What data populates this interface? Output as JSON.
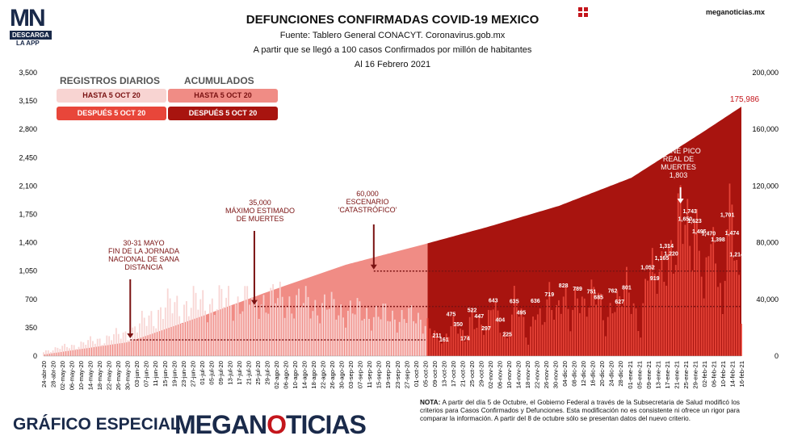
{
  "header": {
    "logo_mn": "MN",
    "logo_tag": "DESCARGA",
    "logo_app": "LA APP",
    "title": "DEFUNCIONES CONFIRMADAS COVID-19 MEXICO",
    "subtitle1": "Fuente: Tablero General CONACYT. Coronavirus.gob.mx",
    "subtitle2": "A partir que se llegó a 100 casos Confirmados por millón de habitantes",
    "subtitle3": "Al 16 Febrero 2021",
    "site": "meganoticias.mx"
  },
  "legend": {
    "daily_title": "REGISTROS DIARIOS",
    "acum_title": "ACUMULADOS",
    "until": "HASTA 5 OCT 20",
    "after": "DESPUÉS 5 OCT 20"
  },
  "colors": {
    "daily_before": "#f8d4d2",
    "daily_after": "#e8463a",
    "acum_before": "#f08c85",
    "acum_after": "#a8140f",
    "brand_red": "#c4161c",
    "brand_navy": "#1a2a4a"
  },
  "annotations": {
    "a1": "30-31 MAYO\nFIN DE LA JORNADA\nNACIONAL DE SANA\nDISTANCIA",
    "a2": "35,000\nMÁXIMO ESTIMADO\nDE MUERTES",
    "a3": "60,000\nESCENARIO\n‘CATASTRÓFICO’",
    "a4": "21 ENE PICO\nREAL DE\nMUERTES\n1,803",
    "final_value": "175,986"
  },
  "footer": {
    "special": "GRÁFICO ESPECIAL",
    "brand_a": "MEGAN",
    "brand_o": "O",
    "brand_b": "TICIAS",
    "nota_label": "NOTA:",
    "nota": "A partir del día 5 de Octubre, el Gobierno Federal a través de la Subsecretaria de Salud modificó los criterios para Casos Confirmados y Defunciones. Esta modificación no es consistente ni ofrece un rigor para comparar la información. A partir del 8 de octubre sólo se presentan datos del nuevo criterio."
  },
  "chart_data": {
    "type": "bar",
    "left_axis": {
      "ticks": [
        "0",
        "350",
        "700",
        "1,050",
        "1,400",
        "1,750",
        "2,100",
        "2,450",
        "2,800",
        "3,150",
        "3,500"
      ],
      "range": [
        0,
        3500
      ]
    },
    "right_axis": {
      "ticks": [
        "0",
        "40,000",
        "80,000",
        "120,000",
        "160,000",
        "200,000"
      ],
      "range": [
        0,
        200000
      ]
    },
    "x_start": "2020-04-24",
    "x_end": "2021-02-16",
    "split_date": "2020-10-05",
    "x_tick_labels": [
      "24-abr-20",
      "28-abr-20",
      "02-may-20",
      "06-may-20",
      "10-may-20",
      "14-may-20",
      "18-may-20",
      "22-may-20",
      "26-may-20",
      "30-may-20",
      "03-jun-20",
      "07-jun-20",
      "11-jun-20",
      "15-jun-20",
      "19-jun-20",
      "23-jun-20",
      "27-jun-20",
      "01-jul-20",
      "05-jul-20",
      "09-jul-20",
      "13-jul-20",
      "17-jul-20",
      "21-jul-20",
      "25-jul-20",
      "29-jul-20",
      "02-ago-20",
      "06-ago-20",
      "10-ago-20",
      "14-ago-20",
      "18-ago-20",
      "22-ago-20",
      "26-ago-20",
      "30-ago-20",
      "03-sep-20",
      "07-sep-20",
      "11-sep-20",
      "15-sep-20",
      "19-sep-20",
      "23-sep-20",
      "27-sep-20",
      "01-oct-20",
      "05-oct-20",
      "09-oct-20",
      "13-oct-20",
      "17-oct-20",
      "21-oct-20",
      "25-oct-20",
      "29-oct-20",
      "02-nov-20",
      "06-nov-20",
      "10-nov-20",
      "14-nov-20",
      "18-nov-20",
      "22-nov-20",
      "26-nov-20",
      "30-nov-20",
      "04-dic-20",
      "08-dic-20",
      "12-dic-20",
      "16-dic-20",
      "20-dic-20",
      "24-dic-20",
      "28-dic-20",
      "01-ene-21",
      "05-ene-21",
      "09-ene-21",
      "13-ene-21",
      "17-ene-21",
      "21-ene-21",
      "25-ene-21",
      "29-ene-21",
      "02-feb-21",
      "06-feb-21",
      "10-feb-21",
      "14-feb-21",
      "16-feb-21"
    ],
    "reference_lines": [
      {
        "label": "35,000",
        "value": 35000
      },
      {
        "label": "60,000",
        "value": 60000
      },
      {
        "label": "30-31 MAYO",
        "daily_value": 200
      }
    ],
    "cumulative_points": [
      [
        "2020-04-24",
        1069
      ],
      [
        "2020-05-30",
        9779
      ],
      [
        "2020-06-30",
        27769
      ],
      [
        "2020-07-31",
        46688
      ],
      [
        "2020-08-31",
        64414
      ],
      [
        "2020-10-04",
        79088
      ],
      [
        "2020-10-31",
        91289
      ],
      [
        "2020-11-30",
        105940
      ],
      [
        "2020-12-31",
        125807
      ],
      [
        "2021-01-31",
        158536
      ],
      [
        "2021-02-16",
        175986
      ]
    ],
    "daily_points": [
      [
        "2020-04-24",
        60
      ],
      [
        "2020-05-10",
        150
      ],
      [
        "2020-05-30",
        280
      ],
      [
        "2020-06-15",
        600
      ],
      [
        "2020-06-30",
        650
      ],
      [
        "2020-07-15",
        680
      ],
      [
        "2020-07-31",
        700
      ],
      [
        "2020-08-15",
        640
      ],
      [
        "2020-08-31",
        560
      ],
      [
        "2020-09-15",
        500
      ],
      [
        "2020-10-04",
        450
      ],
      [
        "2020-10-09",
        211
      ],
      [
        "2020-10-12",
        161
      ],
      [
        "2020-10-15",
        475
      ],
      [
        "2020-10-18",
        350
      ],
      [
        "2020-10-21",
        174
      ],
      [
        "2020-10-24",
        522
      ],
      [
        "2020-10-27",
        447
      ],
      [
        "2020-10-30",
        297
      ],
      [
        "2020-11-02",
        643
      ],
      [
        "2020-11-05",
        404
      ],
      [
        "2020-11-08",
        225
      ],
      [
        "2020-11-11",
        635
      ],
      [
        "2020-11-14",
        495
      ],
      [
        "2020-11-17",
        200
      ],
      [
        "2020-11-20",
        636
      ],
      [
        "2020-11-23",
        340
      ],
      [
        "2020-11-26",
        719
      ],
      [
        "2020-11-29",
        610
      ],
      [
        "2020-12-02",
        828
      ],
      [
        "2020-12-05",
        340
      ],
      [
        "2020-12-08",
        789
      ],
      [
        "2020-12-11",
        690
      ],
      [
        "2020-12-14",
        751
      ],
      [
        "2020-12-17",
        685
      ],
      [
        "2020-12-20",
        342
      ],
      [
        "2020-12-23",
        762
      ],
      [
        "2020-12-26",
        627
      ],
      [
        "2020-12-29",
        801
      ],
      [
        "2021-01-01",
        655
      ],
      [
        "2021-01-04",
        325
      ],
      [
        "2021-01-07",
        1052
      ],
      [
        "2021-01-10",
        919
      ],
      [
        "2021-01-13",
        1165
      ],
      [
        "2021-01-15",
        1314
      ],
      [
        "2021-01-17",
        1220
      ],
      [
        "2021-01-19",
        1100
      ],
      [
        "2021-01-21",
        1803
      ],
      [
        "2021-01-23",
        1650
      ],
      [
        "2021-01-25",
        1743
      ],
      [
        "2021-01-27",
        1623
      ],
      [
        "2021-01-29",
        1495
      ],
      [
        "2021-01-31",
        520
      ],
      [
        "2021-02-02",
        1470
      ],
      [
        "2021-02-04",
        1355
      ],
      [
        "2021-02-06",
        1398
      ],
      [
        "2021-02-08",
        450
      ],
      [
        "2021-02-10",
        1701
      ],
      [
        "2021-02-12",
        1474
      ],
      [
        "2021-02-14",
        1214
      ],
      [
        "2021-02-16",
        450
      ]
    ],
    "data_labels": [
      {
        "date": "2020-10-09",
        "value": 211
      },
      {
        "date": "2020-10-12",
        "value": 161
      },
      {
        "date": "2020-10-15",
        "value": 475
      },
      {
        "date": "2020-10-18",
        "value": 350
      },
      {
        "date": "2020-10-21",
        "value": 174
      },
      {
        "date": "2020-10-24",
        "value": 522
      },
      {
        "date": "2020-10-27",
        "value": 447
      },
      {
        "date": "2020-10-30",
        "value": 297
      },
      {
        "date": "2020-11-02",
        "value": 643
      },
      {
        "date": "2020-11-05",
        "value": 404
      },
      {
        "date": "2020-11-08",
        "value": 225
      },
      {
        "date": "2020-11-11",
        "value": 635
      },
      {
        "date": "2020-11-14",
        "value": 495
      },
      {
        "date": "2020-11-20",
        "value": 636
      },
      {
        "date": "2020-11-26",
        "value": 719
      },
      {
        "date": "2020-12-02",
        "value": 828
      },
      {
        "date": "2020-12-08",
        "value": 789
      },
      {
        "date": "2020-12-14",
        "value": 751
      },
      {
        "date": "2020-12-17",
        "value": 685
      },
      {
        "date": "2020-12-23",
        "value": 762
      },
      {
        "date": "2020-12-26",
        "value": 627
      },
      {
        "date": "2020-12-29",
        "value": 801
      },
      {
        "date": "2021-01-07",
        "value": 1052
      },
      {
        "date": "2021-01-10",
        "value": 919
      },
      {
        "date": "2021-01-13",
        "value": 1165
      },
      {
        "date": "2021-01-15",
        "value": 1314
      },
      {
        "date": "2021-01-17",
        "value": 1220
      },
      {
        "date": "2021-01-23",
        "value": 1650
      },
      {
        "date": "2021-01-25",
        "value": 1743
      },
      {
        "date": "2021-01-27",
        "value": 1623
      },
      {
        "date": "2021-01-29",
        "value": 1495
      },
      {
        "date": "2021-02-02",
        "value": 1470
      },
      {
        "date": "2021-02-06",
        "value": 1398
      },
      {
        "date": "2021-02-10",
        "value": 1701
      },
      {
        "date": "2021-02-12",
        "value": 1474
      },
      {
        "date": "2021-02-14",
        "value": 1214
      }
    ]
  }
}
